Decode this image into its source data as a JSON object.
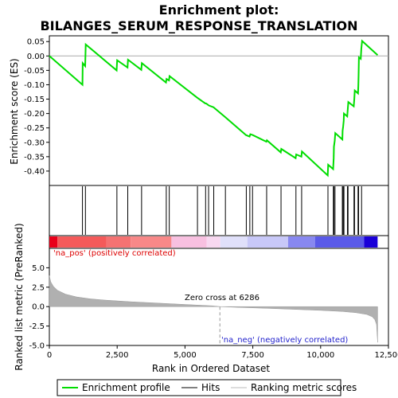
{
  "chart_data": {
    "type": "line",
    "title_line1": "Enrichment plot:",
    "title_line2": "BILANGES_SERUM_RESPONSE_TRANSLATION",
    "top_panel": {
      "ylabel": "Enrichment score (ES)",
      "ylim": [
        -0.45,
        0.07
      ],
      "yticks": [
        "0.05",
        "0.00",
        "-0.05",
        "-0.10",
        "-0.15",
        "-0.20",
        "-0.25",
        "-0.30",
        "-0.35",
        "-0.40"
      ],
      "ytick_values": [
        0.05,
        0.0,
        -0.05,
        -0.1,
        -0.15,
        -0.2,
        -0.25,
        -0.3,
        -0.35,
        -0.4
      ],
      "series_color": "#00dd00",
      "es_points": [
        [
          0,
          0.0
        ],
        [
          1220,
          -0.1
        ],
        [
          1230,
          -0.025
        ],
        [
          1320,
          -0.035
        ],
        [
          1340,
          0.04
        ],
        [
          2480,
          -0.05
        ],
        [
          2500,
          -0.015
        ],
        [
          2880,
          -0.04
        ],
        [
          2900,
          -0.013
        ],
        [
          3390,
          -0.048
        ],
        [
          3410,
          -0.025
        ],
        [
          4300,
          -0.092
        ],
        [
          4320,
          -0.08
        ],
        [
          4410,
          -0.085
        ],
        [
          4430,
          -0.07
        ],
        [
          5450,
          -0.145
        ],
        [
          5750,
          -0.165
        ],
        [
          5780,
          -0.165
        ],
        [
          5880,
          -0.172
        ],
        [
          6050,
          -0.178
        ],
        [
          6480,
          -0.212
        ],
        [
          7250,
          -0.275
        ],
        [
          7380,
          -0.28
        ],
        [
          7410,
          -0.272
        ],
        [
          7500,
          -0.275
        ],
        [
          8000,
          -0.298
        ],
        [
          8020,
          -0.293
        ],
        [
          8530,
          -0.335
        ],
        [
          8550,
          -0.323
        ],
        [
          9080,
          -0.355
        ],
        [
          9100,
          -0.342
        ],
        [
          9290,
          -0.35
        ],
        [
          9310,
          -0.332
        ],
        [
          10260,
          -0.415
        ],
        [
          10280,
          -0.378
        ],
        [
          10460,
          -0.393
        ],
        [
          10480,
          -0.355
        ],
        [
          10490,
          -0.315
        ],
        [
          10520,
          -0.295
        ],
        [
          10540,
          -0.268
        ],
        [
          10800,
          -0.29
        ],
        [
          10810,
          -0.26
        ],
        [
          10830,
          -0.245
        ],
        [
          10850,
          -0.225
        ],
        [
          10860,
          -0.2
        ],
        [
          10980,
          -0.21
        ],
        [
          11000,
          -0.185
        ],
        [
          11020,
          -0.16
        ],
        [
          11220,
          -0.175
        ],
        [
          11240,
          -0.15
        ],
        [
          11260,
          -0.12
        ],
        [
          11380,
          -0.13
        ],
        [
          11390,
          -0.1
        ],
        [
          11400,
          -0.065
        ],
        [
          11410,
          -0.005
        ],
        [
          11480,
          -0.01
        ],
        [
          11500,
          0.025
        ],
        [
          11530,
          0.052
        ],
        [
          12100,
          0.003
        ]
      ]
    },
    "hits": [
      1220,
      1330,
      2490,
      2890,
      3400,
      4310,
      4420,
      5460,
      5760,
      5870,
      6060,
      6490,
      7260,
      7390,
      7490,
      8010,
      8540,
      9090,
      9300,
      10270,
      10470,
      10490,
      10530,
      10800,
      10830,
      10860,
      10990,
      11010,
      11230,
      11250,
      11380,
      11400,
      11510
    ],
    "gradient_bar": {
      "segments": [
        {
          "from": 0,
          "to": 300,
          "color": "#e8001a"
        },
        {
          "from": 300,
          "to": 2100,
          "color": "#f45a5a"
        },
        {
          "from": 2100,
          "to": 3000,
          "color": "#f47272"
        },
        {
          "from": 3000,
          "to": 4500,
          "color": "#f88888"
        },
        {
          "from": 4500,
          "to": 5800,
          "color": "#f8c0e0"
        },
        {
          "from": 5800,
          "to": 6300,
          "color": "#f8d8f0"
        },
        {
          "from": 6300,
          "to": 7300,
          "color": "#e0e0fa"
        },
        {
          "from": 7300,
          "to": 8800,
          "color": "#c8c8f8"
        },
        {
          "from": 8800,
          "to": 9800,
          "color": "#8888f0"
        },
        {
          "from": 9800,
          "to": 11600,
          "color": "#5a5ae8"
        },
        {
          "from": 11600,
          "to": 12100,
          "color": "#1a00d8"
        }
      ]
    },
    "bottom_panel": {
      "ylabel": "Ranked list metric (PreRanked)",
      "ylim": [
        -5.0,
        7.5
      ],
      "yticks": [
        "5.0",
        "2.5",
        "0.0",
        "-2.5",
        "-5.0"
      ],
      "ytick_values": [
        5.0,
        2.5,
        0.0,
        -2.5,
        -5.0
      ],
      "metric_points": [
        [
          0,
          4.0
        ],
        [
          50,
          3.2
        ],
        [
          150,
          2.6
        ],
        [
          300,
          2.1
        ],
        [
          600,
          1.6
        ],
        [
          1000,
          1.25
        ],
        [
          1500,
          1.0
        ],
        [
          2000,
          0.85
        ],
        [
          3000,
          0.62
        ],
        [
          4000,
          0.45
        ],
        [
          5000,
          0.28
        ],
        [
          6000,
          0.1
        ],
        [
          6286,
          0.0
        ],
        [
          7000,
          -0.1
        ],
        [
          8000,
          -0.22
        ],
        [
          9000,
          -0.35
        ],
        [
          10000,
          -0.48
        ],
        [
          10800,
          -0.62
        ],
        [
          11300,
          -0.78
        ],
        [
          11700,
          -1.0
        ],
        [
          11900,
          -1.3
        ],
        [
          12000,
          -1.7
        ],
        [
          12060,
          -2.3
        ],
        [
          12100,
          -4.6
        ]
      ],
      "pos_label": "'na_pos' (positively correlated)",
      "neg_label": "'na_neg' (negatively correlated)",
      "zero_cross_label": "Zero cross at 6286",
      "zero_cross": 6286
    },
    "xlabel": "Rank in Ordered Dataset",
    "xlim": [
      0,
      12500
    ],
    "xticks": [
      "0",
      "2,500",
      "5,000",
      "7,500",
      "10,000",
      "12,500"
    ],
    "xtick_values": [
      0,
      2500,
      5000,
      7500,
      10000,
      12500
    ],
    "legend": {
      "placement": "bottom",
      "items": [
        "Enrichment profile",
        "Hits",
        "Ranking metric scores"
      ]
    }
  }
}
